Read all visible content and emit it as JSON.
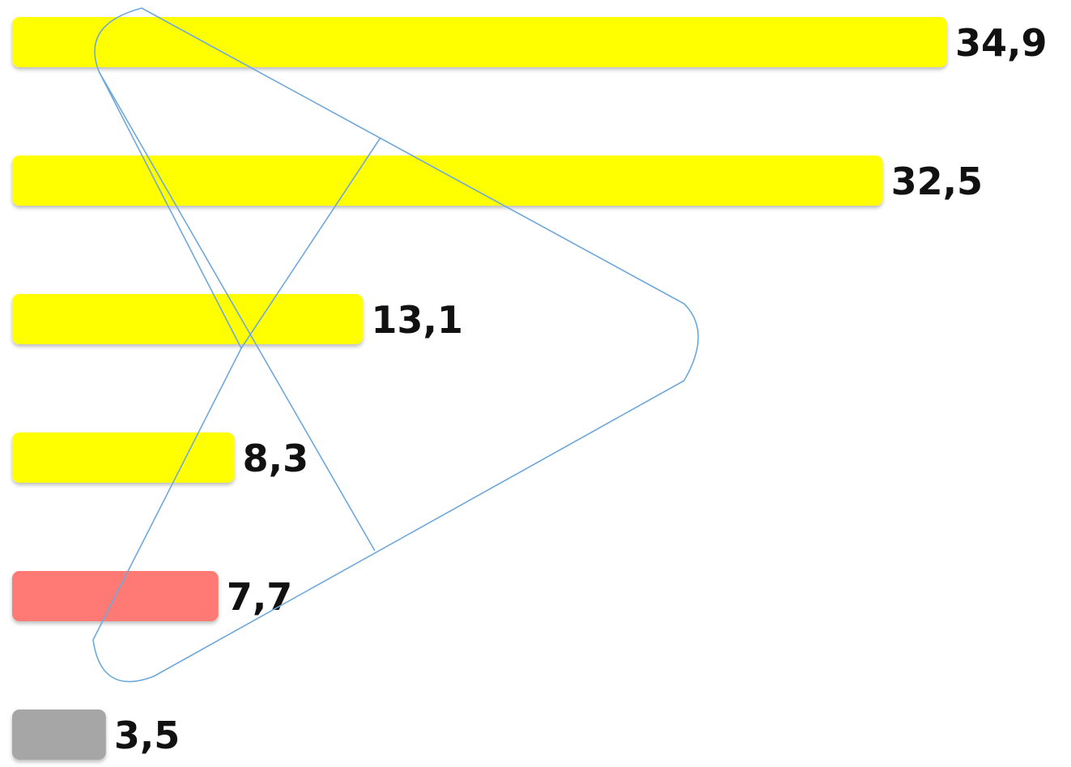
{
  "chart_data": {
    "type": "bar",
    "orientation": "horizontal",
    "title": "",
    "xlabel": "",
    "ylabel": "",
    "grid": false,
    "legend": "none",
    "xlim": [
      0,
      34.9
    ],
    "values": [
      34.9,
      32.5,
      13.1,
      8.3,
      7.7,
      3.5
    ],
    "value_labels": [
      "34,9",
      "32,5",
      "13,1",
      "8,3",
      "7,7",
      "3,5"
    ],
    "colors": [
      "#ffff00",
      "#ffff00",
      "#ffff00",
      "#ffff00",
      "#ff7a74",
      "#a6a6a6"
    ],
    "overlay": {
      "shape": "rounded-triangle-play-logo",
      "color": "#6fa8dc"
    }
  }
}
